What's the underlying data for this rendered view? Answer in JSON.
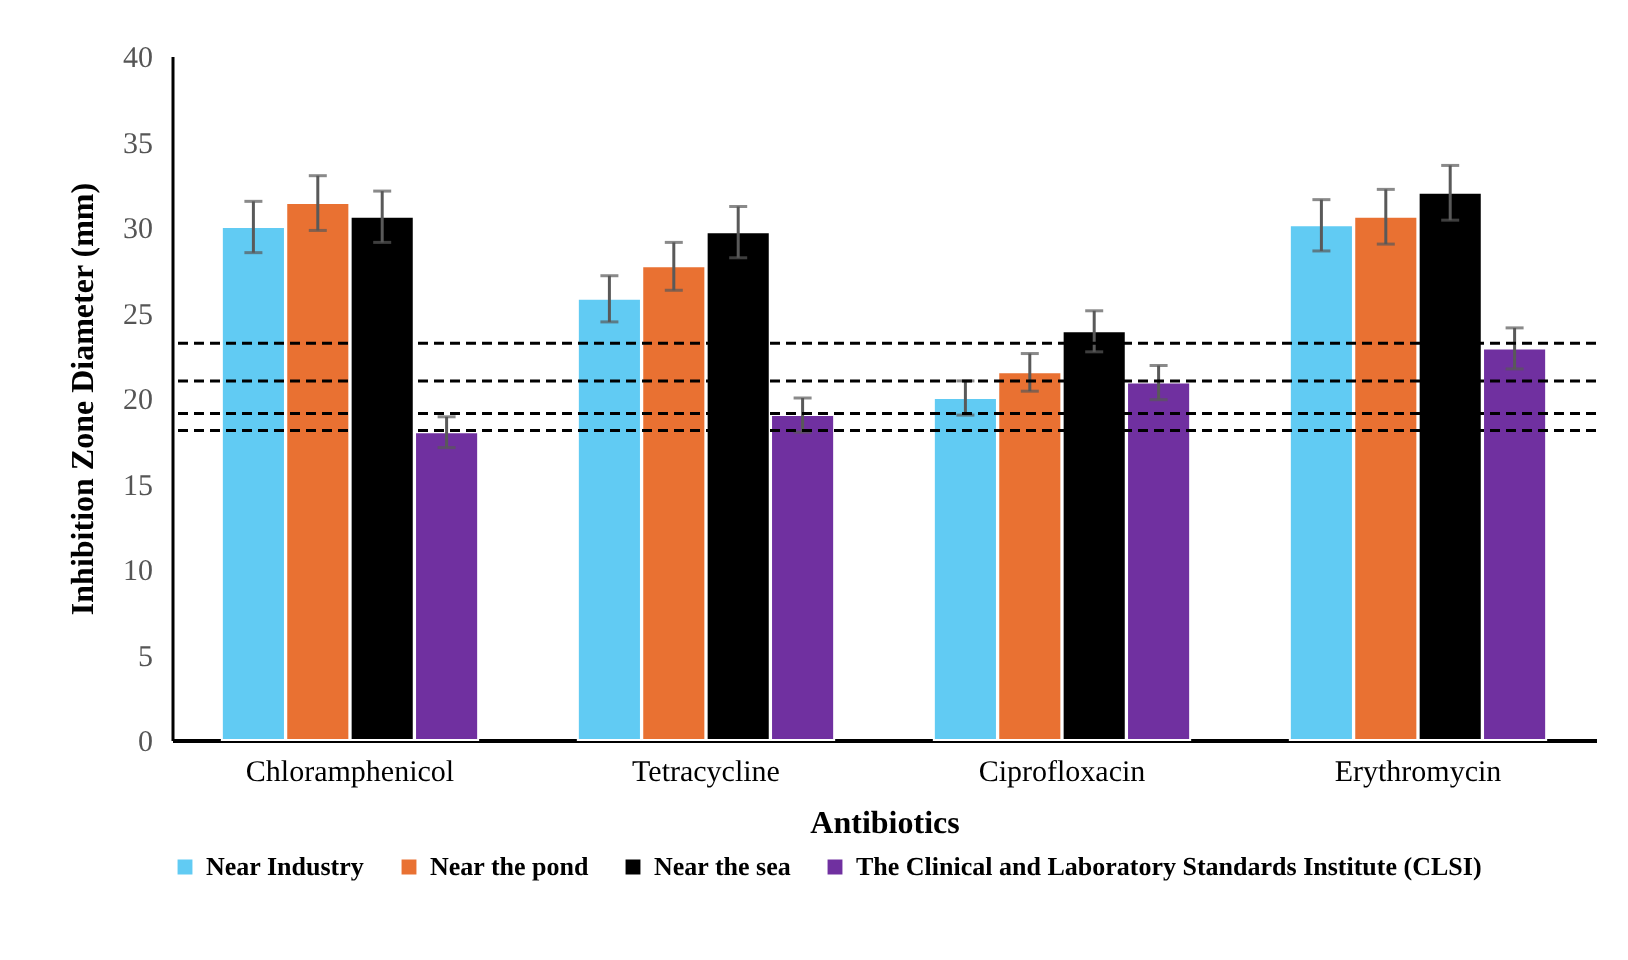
{
  "chart_data": {
    "type": "bar",
    "xlabel": "Antibiotics",
    "ylabel": "Inhibition Zone Diameter (mm)",
    "categories": [
      "Chloramphenicol",
      "Tetracycline",
      "Ciprofloxacin",
      "Erythromycin"
    ],
    "series": [
      {
        "name": "Near Industry",
        "color": "#61cbf3",
        "values": [
          30.0,
          25.8,
          20.0,
          30.1
        ],
        "errors": [
          1.5,
          1.35,
          1.0,
          1.5
        ]
      },
      {
        "name": "Near the pond",
        "color": "#e97132",
        "values": [
          31.4,
          27.7,
          21.5,
          30.6
        ],
        "errors": [
          1.6,
          1.4,
          1.1,
          1.6
        ]
      },
      {
        "name": "Near the sea",
        "color": "#000000",
        "values": [
          30.6,
          29.7,
          23.9,
          32.0
        ],
        "errors": [
          1.5,
          1.5,
          1.2,
          1.6
        ]
      },
      {
        "name": "The Clinical and Laboratory Standards Institute (CLSI)",
        "color": "#7030a0",
        "values": [
          18.0,
          19.0,
          20.9,
          22.9
        ],
        "errors": [
          0.9,
          1.0,
          1.0,
          1.2
        ]
      }
    ],
    "ylim": [
      0,
      40
    ],
    "yticks": [
      0,
      5,
      10,
      15,
      20,
      25,
      30,
      35,
      40
    ],
    "grid": false,
    "legend": "bottom",
    "ref_lines": [
      {
        "axis": "y",
        "value": 23.2,
        "color": "#000000",
        "line_style": "dashed"
      },
      {
        "axis": "y",
        "value": 21.0,
        "color": "#000000",
        "line_style": "dashed"
      },
      {
        "axis": "y",
        "value": 19.1,
        "color": "#000000",
        "line_style": "dashed"
      },
      {
        "axis": "y",
        "value": 18.1,
        "color": "#000000",
        "line_style": "dashed"
      }
    ]
  }
}
